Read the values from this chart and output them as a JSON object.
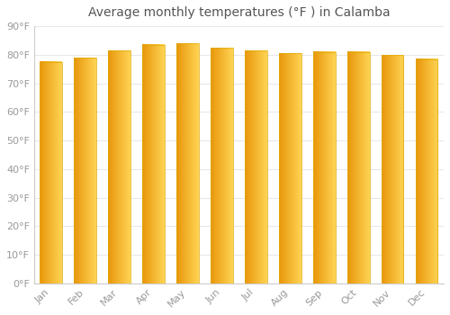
{
  "title": "Average monthly temperatures (°F ) in Calamba",
  "months": [
    "Jan",
    "Feb",
    "Mar",
    "Apr",
    "May",
    "Jun",
    "Jul",
    "Aug",
    "Sep",
    "Oct",
    "Nov",
    "Dec"
  ],
  "values": [
    77.5,
    79.0,
    81.5,
    83.5,
    84.0,
    82.5,
    81.5,
    80.5,
    81.0,
    81.0,
    80.0,
    78.5
  ],
  "bar_color_center": "#FFB700",
  "bar_color_edge": "#FFA500",
  "bar_color_highlight": "#FFD966",
  "background_color": "#FFFFFF",
  "plot_bg_color": "#FFFFFF",
  "grid_color": "#E8E8E8",
  "ytick_labels": [
    "0°F",
    "10°F",
    "20°F",
    "30°F",
    "40°F",
    "50°F",
    "60°F",
    "70°F",
    "80°F",
    "90°F"
  ],
  "ytick_values": [
    0,
    10,
    20,
    30,
    40,
    50,
    60,
    70,
    80,
    90
  ],
  "ylim": [
    0,
    90
  ],
  "title_fontsize": 10,
  "tick_fontsize": 8,
  "tick_color": "#999999",
  "border_color": "#DDAA00"
}
